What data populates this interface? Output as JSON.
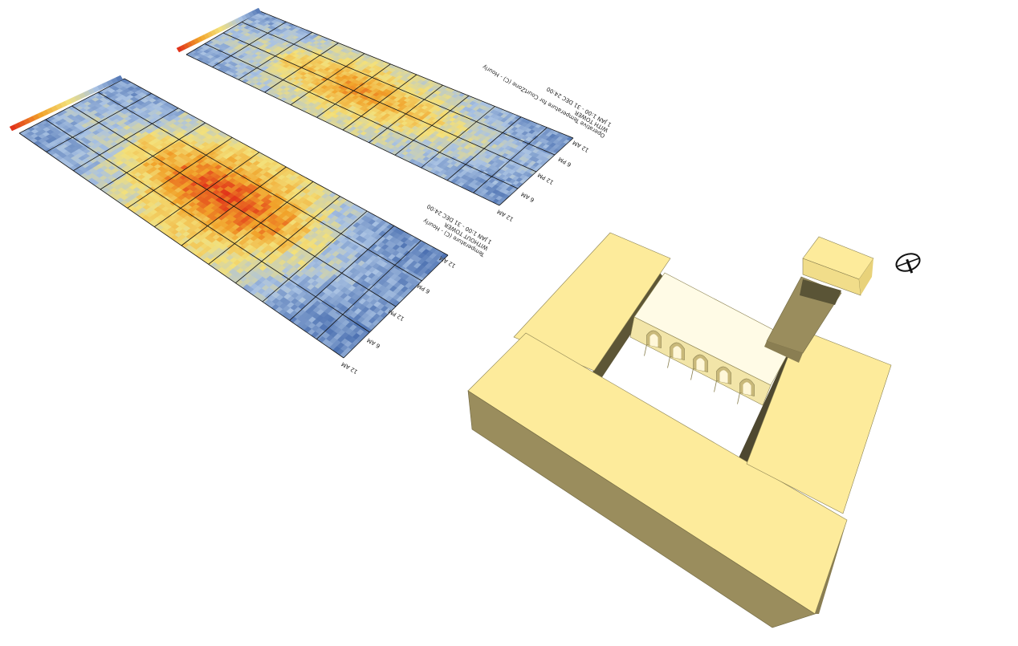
{
  "viewport": {
    "background": "#ffffff"
  },
  "heatmap_bottom": {
    "title_lines": [
      "Temperature (C) - Hourly",
      "WITHOUT TOWER",
      "1 JAN 1:00 - 31 DEC 24:00"
    ],
    "time_labels": [
      "12 AM",
      "6 AM",
      "12 PM",
      "6 PM",
      "12 AM"
    ],
    "profile": [
      0.25,
      0.3,
      0.38,
      0.55,
      0.7,
      0.82,
      0.9,
      0.92,
      0.88,
      0.78,
      0.62,
      0.45,
      0.3,
      0.22,
      0.18,
      0.15
    ]
  },
  "heatmap_top": {
    "title_lines": [
      "Operative Temperature for CourtZone (C) - Hourly",
      "WITH TOWER",
      "1 JAN 1:00 - 31 DEC 24:00"
    ],
    "time_labels": [
      "12 AM",
      "6 AM",
      "12 PM",
      "6 PM",
      "12 AM"
    ],
    "profile": [
      0.3,
      0.35,
      0.42,
      0.55,
      0.62,
      0.7,
      0.75,
      0.72,
      0.66,
      0.6,
      0.52,
      0.45,
      0.38,
      0.3,
      0.25,
      0.22
    ]
  },
  "colors": {
    "cold": "#4a6fb0",
    "cool": "#a9c2e3",
    "mild": "#f3e07a",
    "warm": "#f1a22a",
    "hot": "#e1341a",
    "building_top": "#fdeb9b",
    "building_side": "#9a8d5d",
    "building_edge": "#6f6640",
    "courtyard_fill": "#fffbe6"
  }
}
